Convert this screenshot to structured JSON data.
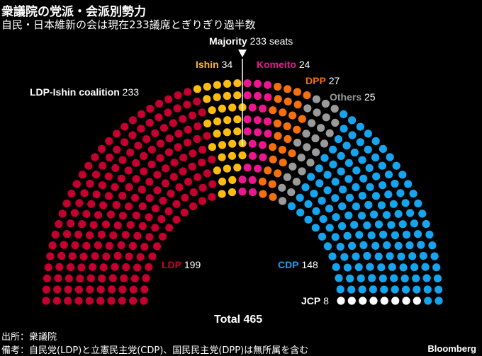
{
  "header": {
    "title": "衆議院の党派・会派別勢力",
    "subtitle": "自民・日本維新の会は現在233議席とぎりぎり過半数"
  },
  "chart_data": {
    "type": "parliament",
    "total_label": "Total 465",
    "majority": {
      "label": "Majority",
      "value_label": "233 seats",
      "value": 233
    },
    "coalition": {
      "label": "LDP-Ishin coalition",
      "value": "233"
    },
    "parties": [
      {
        "name": "LDP",
        "seats": 199,
        "count_label": "199",
        "color": "#c4002f"
      },
      {
        "name": "Ishin",
        "seats": 34,
        "count_label": "34",
        "color": "#fdbd10"
      },
      {
        "name": "Komeito",
        "seats": 24,
        "count_label": "24",
        "color": "#ee168e"
      },
      {
        "name": "DPP",
        "seats": 27,
        "count_label": "27",
        "color": "#f56f0c"
      },
      {
        "name": "Others",
        "seats": 25,
        "count_label": "25",
        "color": "#9a9a9a"
      },
      {
        "name": "CDP",
        "seats": 148,
        "count_label": "148",
        "color": "#17a4ee"
      },
      {
        "name": "JCP",
        "seats": 8,
        "count_label": "8",
        "color": "#ffffff"
      }
    ]
  },
  "footer": {
    "source": "出所：衆議院",
    "note": "備考：自民党(LDP)と立憲民主党(CDP)、国民民主党(DPP)は無所属を含む",
    "brand": "Bloomberg"
  }
}
